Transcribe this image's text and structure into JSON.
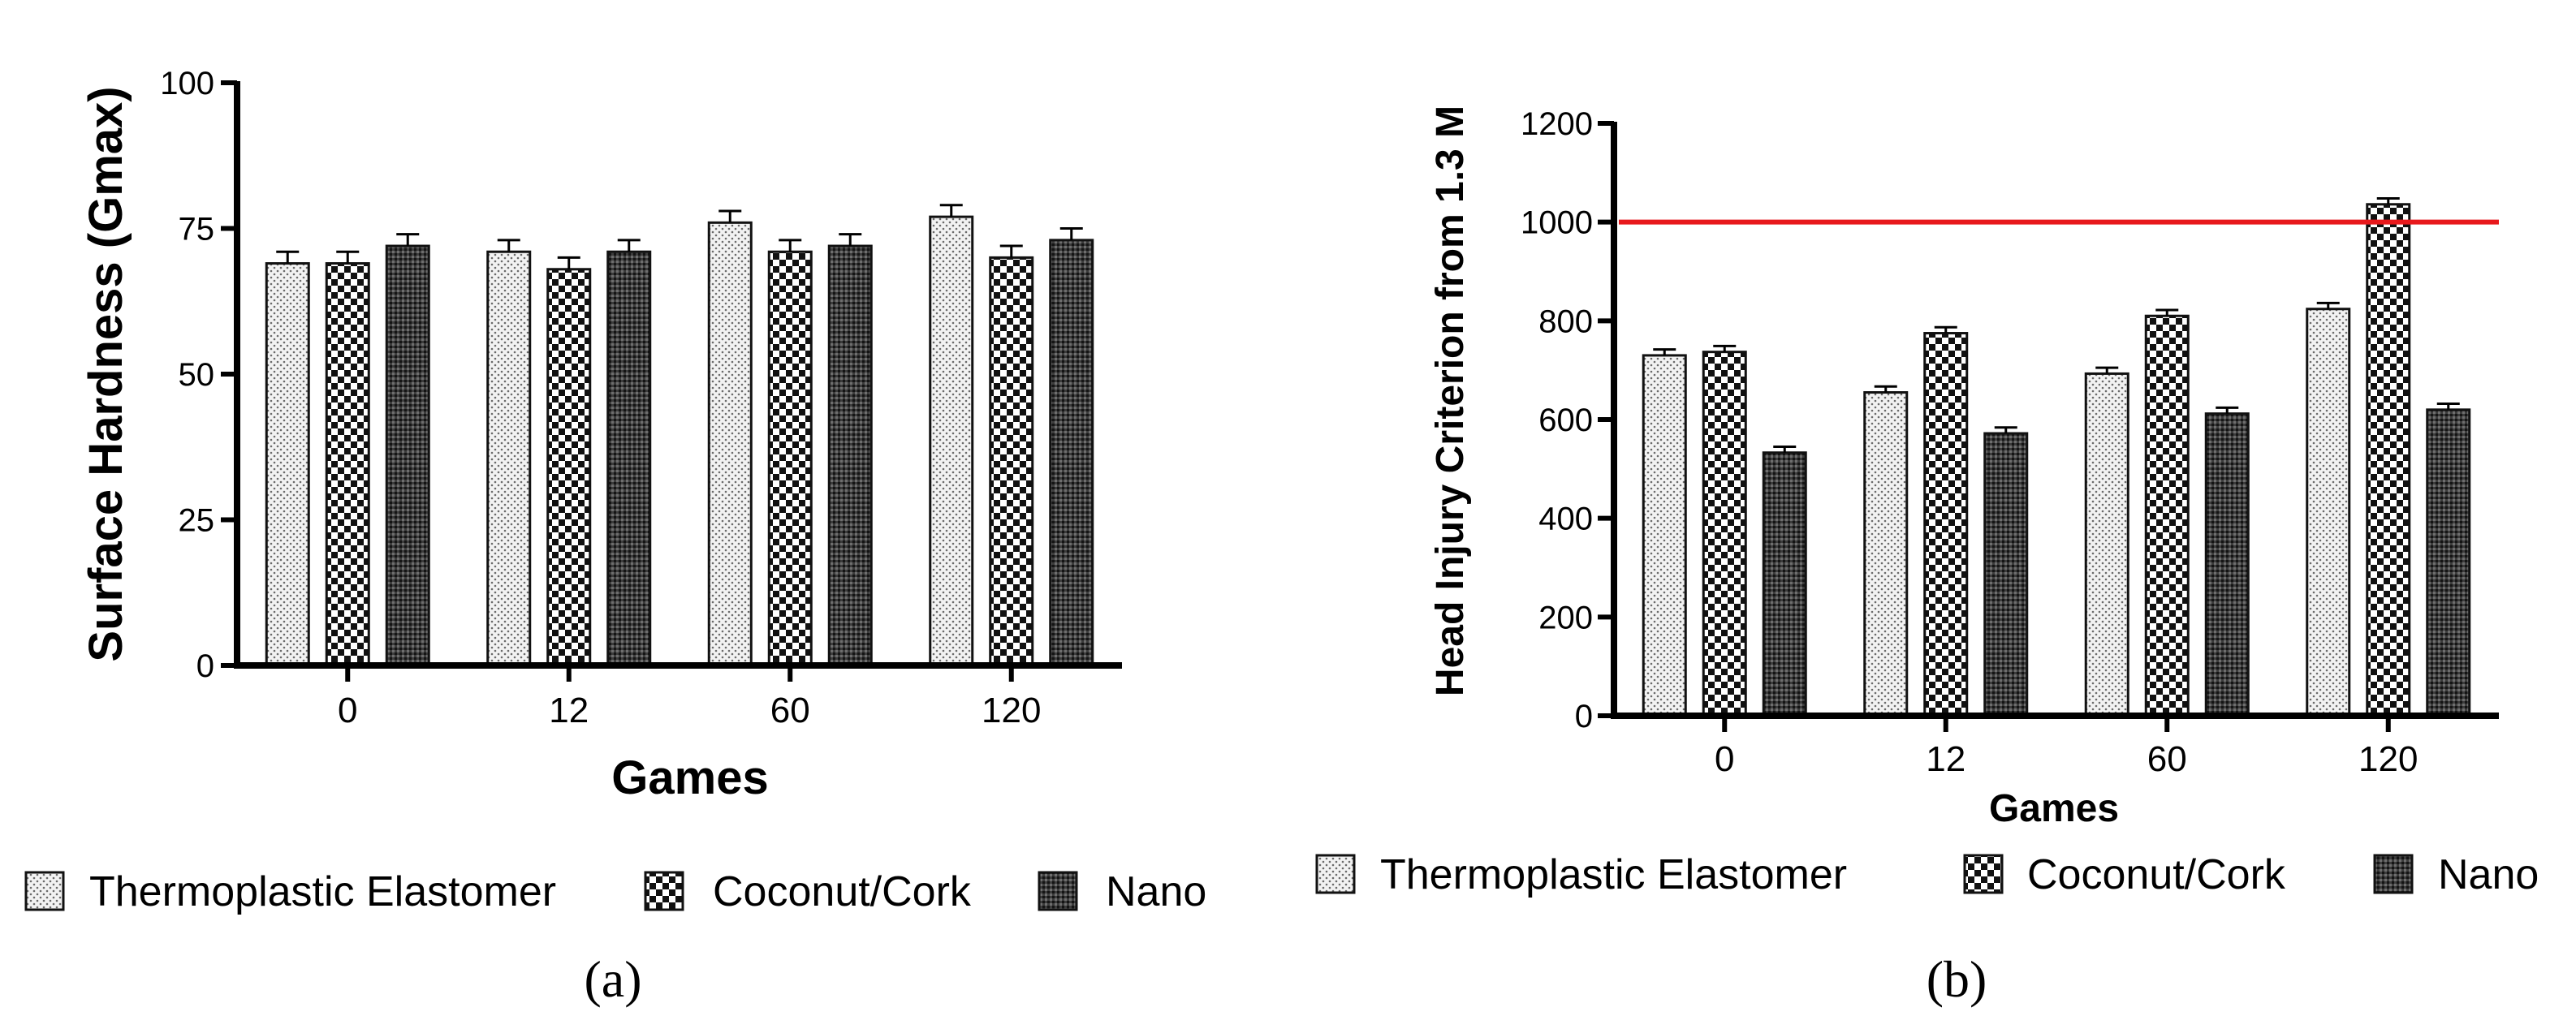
{
  "chart_data": [
    {
      "type": "bar",
      "panel": "a",
      "caption": "(a)",
      "title": "",
      "xlabel": "Games",
      "ylabel": "Surface Hardness (Gmax)",
      "categories": [
        "0",
        "12",
        "60",
        "120"
      ],
      "ylim": [
        0,
        100
      ],
      "yticks": [
        "0",
        "25",
        "50",
        "75",
        "100"
      ],
      "yticks_values": [
        0,
        25,
        50,
        75,
        100
      ],
      "series": [
        {
          "name": "Thermoplastic Elastomer",
          "pattern": "dots",
          "values": [
            69,
            71,
            76,
            77
          ],
          "errors": [
            2,
            2,
            2,
            2
          ]
        },
        {
          "name": "Coconut/Cork",
          "pattern": "checker",
          "values": [
            69,
            68,
            71,
            70
          ],
          "errors": [
            2,
            2,
            2,
            2
          ]
        },
        {
          "name": "Nano",
          "pattern": "dense",
          "values": [
            72,
            71,
            72,
            73
          ],
          "errors": [
            2,
            2,
            2,
            2
          ]
        }
      ],
      "reference_line": null
    },
    {
      "type": "bar",
      "panel": "b",
      "caption": "(b)",
      "title": "",
      "xlabel": "Games",
      "ylabel": "Head Injury Criterion from 1.3 M",
      "categories": [
        "0",
        "12",
        "60",
        "120"
      ],
      "ylim": [
        0,
        1200
      ],
      "yticks": [
        "0",
        "200",
        "400",
        "600",
        "800",
        "1000",
        "1200"
      ],
      "yticks_values": [
        0,
        200,
        400,
        600,
        800,
        1000,
        1200
      ],
      "series": [
        {
          "name": "Thermoplastic Elastomer",
          "pattern": "dots",
          "values": [
            730,
            655,
            693,
            824
          ],
          "errors": [
            12,
            12,
            12,
            12
          ]
        },
        {
          "name": "Coconut/Cork",
          "pattern": "checker",
          "values": [
            737,
            775,
            810,
            1036
          ],
          "errors": [
            12,
            12,
            12,
            12
          ]
        },
        {
          "name": "Nano",
          "pattern": "dense",
          "values": [
            533,
            572,
            612,
            620
          ],
          "errors": [
            12,
            12,
            12,
            12
          ]
        }
      ],
      "reference_line": {
        "value": 1000,
        "color": "#e8191c"
      }
    }
  ]
}
